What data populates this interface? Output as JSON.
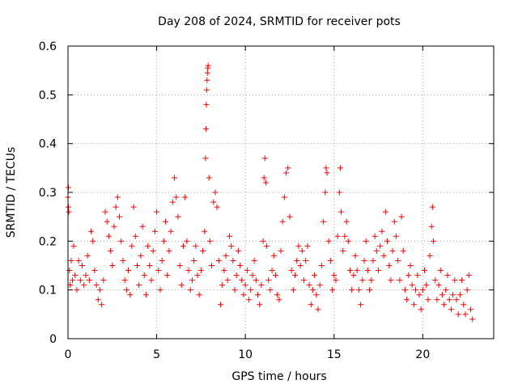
{
  "chart_data": {
    "type": "scatter",
    "title": "Day 208 of 2024, SRMTID for receiver pots",
    "xlabel": "GPS time / hours",
    "ylabel": "SRMTID / TECUs",
    "xlim": [
      0,
      24
    ],
    "ylim": [
      0,
      0.6
    ],
    "xticks": [
      0,
      5,
      10,
      15,
      20
    ],
    "xtick_labels": [
      "0",
      "5",
      "10",
      "15",
      "20"
    ],
    "yticks": [
      0,
      0.1,
      0.2,
      0.3,
      0.4,
      0.5,
      0.6
    ],
    "ytick_labels": [
      "0",
      "0.1",
      "0.2",
      "0.3",
      "0.4",
      "0.5",
      "0.6"
    ],
    "grid": true,
    "marker": "+",
    "series": [
      {
        "name": "pots",
        "color": "#ff0000",
        "points": [
          [
            0.0,
            0.29
          ],
          [
            0.02,
            0.31
          ],
          [
            0.03,
            0.27
          ],
          [
            0.05,
            0.26
          ],
          [
            0.08,
            0.14
          ],
          [
            0.12,
            0.11
          ],
          [
            0.18,
            0.16
          ],
          [
            0.25,
            0.12
          ],
          [
            0.32,
            0.19
          ],
          [
            0.4,
            0.13
          ],
          [
            0.5,
            0.1
          ],
          [
            0.6,
            0.16
          ],
          [
            0.7,
            0.12
          ],
          [
            0.8,
            0.15
          ],
          [
            0.9,
            0.11
          ],
          [
            1.0,
            0.13
          ],
          [
            1.1,
            0.17
          ],
          [
            1.2,
            0.12
          ],
          [
            1.3,
            0.22
          ],
          [
            1.4,
            0.2
          ],
          [
            1.5,
            0.14
          ],
          [
            1.6,
            0.11
          ],
          [
            1.7,
            0.08
          ],
          [
            1.8,
            0.1
          ],
          [
            1.9,
            0.07
          ],
          [
            2.0,
            0.12
          ],
          [
            2.1,
            0.26
          ],
          [
            2.2,
            0.24
          ],
          [
            2.3,
            0.21
          ],
          [
            2.4,
            0.18
          ],
          [
            2.5,
            0.15
          ],
          [
            2.6,
            0.23
          ],
          [
            2.7,
            0.27
          ],
          [
            2.8,
            0.29
          ],
          [
            2.9,
            0.25
          ],
          [
            3.0,
            0.2
          ],
          [
            3.1,
            0.16
          ],
          [
            3.2,
            0.12
          ],
          [
            3.3,
            0.1
          ],
          [
            3.4,
            0.14
          ],
          [
            3.5,
            0.09
          ],
          [
            3.6,
            0.19
          ],
          [
            3.7,
            0.27
          ],
          [
            3.8,
            0.21
          ],
          [
            3.9,
            0.15
          ],
          [
            4.0,
            0.11
          ],
          [
            4.1,
            0.17
          ],
          [
            4.2,
            0.23
          ],
          [
            4.3,
            0.13
          ],
          [
            4.4,
            0.09
          ],
          [
            4.5,
            0.19
          ],
          [
            4.6,
            0.15
          ],
          [
            4.7,
            0.12
          ],
          [
            4.8,
            0.18
          ],
          [
            4.9,
            0.22
          ],
          [
            5.0,
            0.26
          ],
          [
            5.1,
            0.14
          ],
          [
            5.2,
            0.1
          ],
          [
            5.3,
            0.16
          ],
          [
            5.4,
            0.2
          ],
          [
            5.5,
            0.24
          ],
          [
            5.6,
            0.13
          ],
          [
            5.7,
            0.18
          ],
          [
            5.8,
            0.22
          ],
          [
            5.9,
            0.28
          ],
          [
            6.0,
            0.33
          ],
          [
            6.1,
            0.29
          ],
          [
            6.2,
            0.25
          ],
          [
            6.3,
            0.15
          ],
          [
            6.4,
            0.11
          ],
          [
            6.5,
            0.19
          ],
          [
            6.6,
            0.29
          ],
          [
            6.7,
            0.2
          ],
          [
            6.8,
            0.14
          ],
          [
            6.9,
            0.1
          ],
          [
            7.0,
            0.12
          ],
          [
            7.1,
            0.16
          ],
          [
            7.2,
            0.19
          ],
          [
            7.3,
            0.13
          ],
          [
            7.4,
            0.09
          ],
          [
            7.5,
            0.14
          ],
          [
            7.6,
            0.18
          ],
          [
            7.7,
            0.22
          ],
          [
            7.75,
            0.37
          ],
          [
            7.78,
            0.43
          ],
          [
            7.8,
            0.48
          ],
          [
            7.82,
            0.51
          ],
          [
            7.84,
            0.53
          ],
          [
            7.86,
            0.545
          ],
          [
            7.88,
            0.555
          ],
          [
            7.9,
            0.56
          ],
          [
            7.95,
            0.33
          ],
          [
            8.0,
            0.2
          ],
          [
            8.1,
            0.15
          ],
          [
            8.2,
            0.28
          ],
          [
            8.3,
            0.3
          ],
          [
            8.4,
            0.27
          ],
          [
            8.5,
            0.16
          ],
          [
            8.6,
            0.07
          ],
          [
            8.7,
            0.11
          ],
          [
            8.8,
            0.14
          ],
          [
            8.9,
            0.17
          ],
          [
            9.0,
            0.12
          ],
          [
            9.1,
            0.21
          ],
          [
            9.2,
            0.19
          ],
          [
            9.3,
            0.16
          ],
          [
            9.4,
            0.1
          ],
          [
            9.5,
            0.13
          ],
          [
            9.6,
            0.18
          ],
          [
            9.7,
            0.15
          ],
          [
            9.8,
            0.12
          ],
          [
            9.9,
            0.09
          ],
          [
            10.0,
            0.11
          ],
          [
            10.1,
            0.14
          ],
          [
            10.2,
            0.08
          ],
          [
            10.3,
            0.1
          ],
          [
            10.4,
            0.13
          ],
          [
            10.5,
            0.16
          ],
          [
            10.6,
            0.12
          ],
          [
            10.7,
            0.09
          ],
          [
            10.8,
            0.07
          ],
          [
            10.9,
            0.11
          ],
          [
            11.0,
            0.2
          ],
          [
            11.05,
            0.33
          ],
          [
            11.1,
            0.37
          ],
          [
            11.15,
            0.32
          ],
          [
            11.2,
            0.19
          ],
          [
            11.3,
            0.12
          ],
          [
            11.4,
            0.1
          ],
          [
            11.5,
            0.14
          ],
          [
            11.6,
            0.17
          ],
          [
            11.7,
            0.13
          ],
          [
            11.8,
            0.09
          ],
          [
            11.9,
            0.08
          ],
          [
            12.0,
            0.18
          ],
          [
            12.1,
            0.24
          ],
          [
            12.2,
            0.29
          ],
          [
            12.3,
            0.34
          ],
          [
            12.4,
            0.35
          ],
          [
            12.5,
            0.25
          ],
          [
            12.6,
            0.14
          ],
          [
            12.7,
            0.1
          ],
          [
            12.8,
            0.13
          ],
          [
            12.9,
            0.16
          ],
          [
            13.0,
            0.19
          ],
          [
            13.1,
            0.15
          ],
          [
            13.2,
            0.18
          ],
          [
            13.3,
            0.12
          ],
          [
            13.4,
            0.16
          ],
          [
            13.5,
            0.19
          ],
          [
            13.6,
            0.11
          ],
          [
            13.7,
            0.07
          ],
          [
            13.8,
            0.1
          ],
          [
            13.9,
            0.13
          ],
          [
            14.0,
            0.09
          ],
          [
            14.1,
            0.06
          ],
          [
            14.2,
            0.11
          ],
          [
            14.3,
            0.15
          ],
          [
            14.4,
            0.24
          ],
          [
            14.5,
            0.3
          ],
          [
            14.55,
            0.35
          ],
          [
            14.6,
            0.34
          ],
          [
            14.7,
            0.2
          ],
          [
            14.8,
            0.16
          ],
          [
            14.9,
            0.1
          ],
          [
            15.0,
            0.13
          ],
          [
            15.1,
            0.12
          ],
          [
            15.2,
            0.21
          ],
          [
            15.3,
            0.3
          ],
          [
            15.35,
            0.35
          ],
          [
            15.4,
            0.26
          ],
          [
            15.5,
            0.18
          ],
          [
            15.6,
            0.21
          ],
          [
            15.7,
            0.24
          ],
          [
            15.8,
            0.2
          ],
          [
            15.9,
            0.14
          ],
          [
            16.0,
            0.1
          ],
          [
            16.1,
            0.13
          ],
          [
            16.2,
            0.17
          ],
          [
            16.3,
            0.14
          ],
          [
            16.4,
            0.1
          ],
          [
            16.5,
            0.07
          ],
          [
            16.6,
            0.12
          ],
          [
            16.7,
            0.16
          ],
          [
            16.8,
            0.2
          ],
          [
            16.9,
            0.14
          ],
          [
            17.0,
            0.1
          ],
          [
            17.1,
            0.12
          ],
          [
            17.2,
            0.16
          ],
          [
            17.3,
            0.21
          ],
          [
            17.4,
            0.18
          ],
          [
            17.5,
            0.14
          ],
          [
            17.6,
            0.19
          ],
          [
            17.7,
            0.22
          ],
          [
            17.8,
            0.17
          ],
          [
            17.9,
            0.26
          ],
          [
            18.0,
            0.2
          ],
          [
            18.1,
            0.15
          ],
          [
            18.2,
            0.12
          ],
          [
            18.3,
            0.18
          ],
          [
            18.4,
            0.24
          ],
          [
            18.5,
            0.21
          ],
          [
            18.6,
            0.16
          ],
          [
            18.7,
            0.12
          ],
          [
            18.8,
            0.25
          ],
          [
            18.9,
            0.18
          ],
          [
            19.0,
            0.1
          ],
          [
            19.1,
            0.08
          ],
          [
            19.2,
            0.13
          ],
          [
            19.3,
            0.15
          ],
          [
            19.4,
            0.11
          ],
          [
            19.5,
            0.07
          ],
          [
            19.6,
            0.1
          ],
          [
            19.7,
            0.13
          ],
          [
            19.8,
            0.09
          ],
          [
            19.9,
            0.06
          ],
          [
            20.0,
            0.1
          ],
          [
            20.1,
            0.14
          ],
          [
            20.2,
            0.11
          ],
          [
            20.3,
            0.08
          ],
          [
            20.4,
            0.17
          ],
          [
            20.5,
            0.23
          ],
          [
            20.55,
            0.27
          ],
          [
            20.6,
            0.2
          ],
          [
            20.7,
            0.12
          ],
          [
            20.8,
            0.08
          ],
          [
            20.9,
            0.11
          ],
          [
            21.0,
            0.14
          ],
          [
            21.1,
            0.09
          ],
          [
            21.2,
            0.07
          ],
          [
            21.3,
            0.1
          ],
          [
            21.4,
            0.13
          ],
          [
            21.5,
            0.08
          ],
          [
            21.6,
            0.06
          ],
          [
            21.7,
            0.09
          ],
          [
            21.8,
            0.12
          ],
          [
            21.9,
            0.08
          ],
          [
            22.0,
            0.05
          ],
          [
            22.1,
            0.09
          ],
          [
            22.2,
            0.12
          ],
          [
            22.3,
            0.07
          ],
          [
            22.4,
            0.05
          ],
          [
            22.5,
            0.1
          ],
          [
            22.6,
            0.13
          ],
          [
            22.7,
            0.06
          ],
          [
            22.8,
            0.04
          ]
        ]
      }
    ]
  }
}
